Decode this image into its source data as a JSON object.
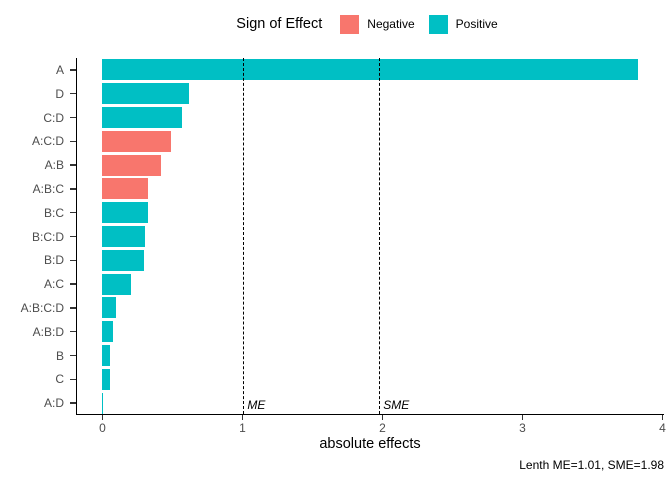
{
  "colors": {
    "negative": "#F8766D",
    "positive": "#00BFC4",
    "axis_text": "#4d4d4d",
    "axis_line": "#000000"
  },
  "legend": {
    "title": "Sign of Effect",
    "items": [
      {
        "label": "Negative",
        "color": "#F8766D"
      },
      {
        "label": "Positive",
        "color": "#00BFC4"
      }
    ]
  },
  "chart_data": {
    "type": "bar",
    "orientation": "horizontal",
    "title": "",
    "xlabel": "absolute effects",
    "ylabel": "",
    "xlim": [
      0,
      4
    ],
    "x_ticks": [
      0,
      1,
      2,
      3,
      4
    ],
    "grid": false,
    "legend_position": "top",
    "categories": [
      "A",
      "D",
      "C:D",
      "A:C:D",
      "A:B",
      "A:B:C",
      "B:C",
      "B:C:D",
      "B:D",
      "A:C",
      "A:B:C:D",
      "A:B:D",
      "B",
      "C",
      "A:D"
    ],
    "values": [
      3.83,
      0.62,
      0.57,
      0.49,
      0.42,
      0.33,
      0.33,
      0.31,
      0.3,
      0.21,
      0.1,
      0.08,
      0.06,
      0.06,
      0.01
    ],
    "signs": [
      "Positive",
      "Positive",
      "Positive",
      "Negative",
      "Negative",
      "Negative",
      "Positive",
      "Positive",
      "Positive",
      "Positive",
      "Positive",
      "Positive",
      "Positive",
      "Positive",
      "Positive"
    ],
    "reference_lines": [
      {
        "label": "ME",
        "value": 1.01
      },
      {
        "label": "SME",
        "value": 1.98
      }
    ]
  },
  "caption": "Lenth ME=1.01, SME=1.98"
}
